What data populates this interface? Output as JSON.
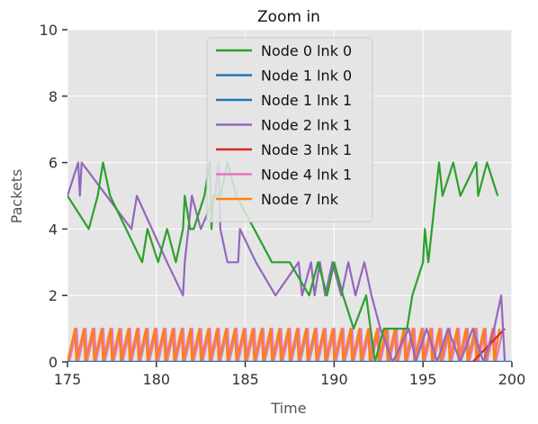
{
  "chart_data": {
    "type": "line",
    "title": "Zoom in",
    "xlabel": "Time",
    "ylabel": "Packets",
    "xlim": [
      175,
      200
    ],
    "ylim": [
      0,
      10
    ],
    "x_ticks": [
      175,
      180,
      185,
      190,
      195,
      200
    ],
    "y_ticks": [
      0,
      2,
      4,
      6,
      8,
      10
    ],
    "grid": true,
    "background": "#e5e5e5",
    "legend_position": "top-center",
    "series": [
      {
        "name": "Node 0 lnk 0",
        "color": "#2ca02c",
        "x": [
          175,
          176.2,
          176.7,
          177,
          177.4,
          179.2,
          179.5,
          180.1,
          180.6,
          181.1,
          181.5,
          181.6,
          181.9,
          182.1,
          182.7,
          183,
          183.1,
          183.2,
          183.6,
          184,
          184.5,
          185.5,
          186.5,
          187.5,
          188.6,
          189.1,
          189.6,
          190,
          190.5,
          191.1,
          191.8,
          192.3,
          192.8,
          193.6,
          194.1,
          194.4,
          195,
          195.1,
          195.3,
          195.9,
          196.1,
          196.7,
          197.1,
          198,
          198.1,
          198.6,
          199.2
        ],
        "y": [
          5,
          4,
          5,
          6,
          5,
          3,
          4,
          3,
          4,
          3,
          4,
          5,
          4,
          4,
          5,
          6,
          4,
          5,
          5,
          6,
          5,
          4,
          3,
          3,
          2,
          3,
          2,
          3,
          2,
          1,
          2,
          0,
          1,
          1,
          1,
          2,
          3,
          4,
          3,
          6,
          5,
          6,
          5,
          6,
          5,
          6,
          5
        ]
      },
      {
        "name": "Node 1 lnk 0",
        "color": "#1f77b4",
        "x": [
          175,
          200
        ],
        "y": [
          0,
          0
        ]
      },
      {
        "name": "Node 1 lnk 1",
        "color": "#1f77b4",
        "x": [
          175,
          200
        ],
        "y": [
          0,
          0
        ]
      },
      {
        "name": "Node 2 lnk 1",
        "color": "#9467bd",
        "x": [
          175,
          175.6,
          175.7,
          175.8,
          178.6,
          178.9,
          180.6,
          181.5,
          181.6,
          182,
          182.5,
          183.3,
          183.5,
          183.6,
          184,
          184.6,
          184.7,
          185.6,
          186.7,
          188,
          188.2,
          188.7,
          188.9,
          189.2,
          189.5,
          189.9,
          190.4,
          190.8,
          191.2,
          191.7,
          192.1,
          192.6,
          193.3,
          194.2,
          194.6,
          195.2,
          195.8,
          196.4,
          197.1,
          197.8,
          198.4,
          199,
          199.4,
          199.6
        ],
        "y": [
          5,
          6,
          5,
          6,
          4,
          5,
          3,
          2,
          3,
          5,
          4,
          5,
          6,
          4,
          3,
          3,
          4,
          3,
          2,
          3,
          2,
          3,
          2,
          3,
          2,
          3,
          2,
          3,
          2,
          3,
          2,
          1,
          0,
          1,
          0,
          1,
          0,
          1,
          0,
          1,
          0,
          1,
          2,
          0
        ]
      },
      {
        "name": "Node 3 lnk 1",
        "color": "#d62728",
        "x": [
          197.8,
          199.6
        ],
        "y": [
          0,
          1
        ]
      },
      {
        "name": "Node 4 lnk 1",
        "color": "#e377c2",
        "sawtooth": {
          "x_start": 175.1,
          "period": 0.5,
          "rise": 0.42,
          "low": 0,
          "high": 1,
          "end": 199.5
        }
      },
      {
        "name": "Node 7 lnk",
        "color": "#ff7f0e",
        "sawtooth": {
          "x_start": 175.0,
          "period": 0.5,
          "rise": 0.42,
          "low": 0,
          "high": 1,
          "end": 199.3
        }
      }
    ]
  }
}
